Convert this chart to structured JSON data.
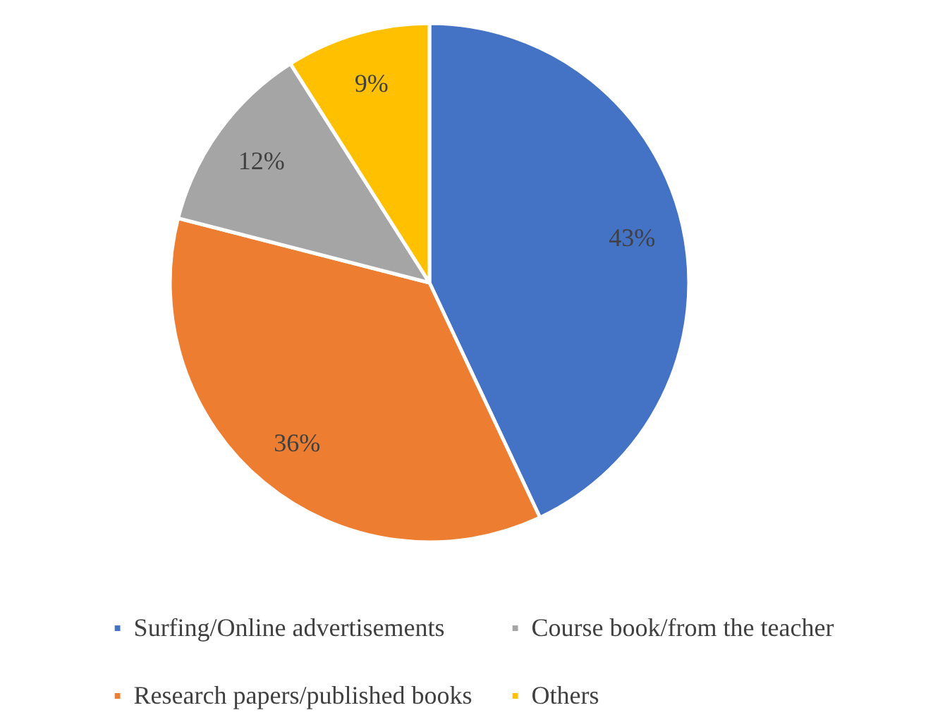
{
  "chart_data": {
    "type": "pie",
    "categories": [
      "Surfing/Online advertisements",
      "Research papers/published books",
      "Course book/from the teacher",
      "Others"
    ],
    "values": [
      43,
      36,
      12,
      9
    ],
    "colors": [
      "#4472c4",
      "#ed7d31",
      "#a5a5a5",
      "#ffc000"
    ],
    "value_labels": [
      "43%",
      "36%",
      "12%",
      "9%"
    ],
    "legend": "bottom"
  }
}
